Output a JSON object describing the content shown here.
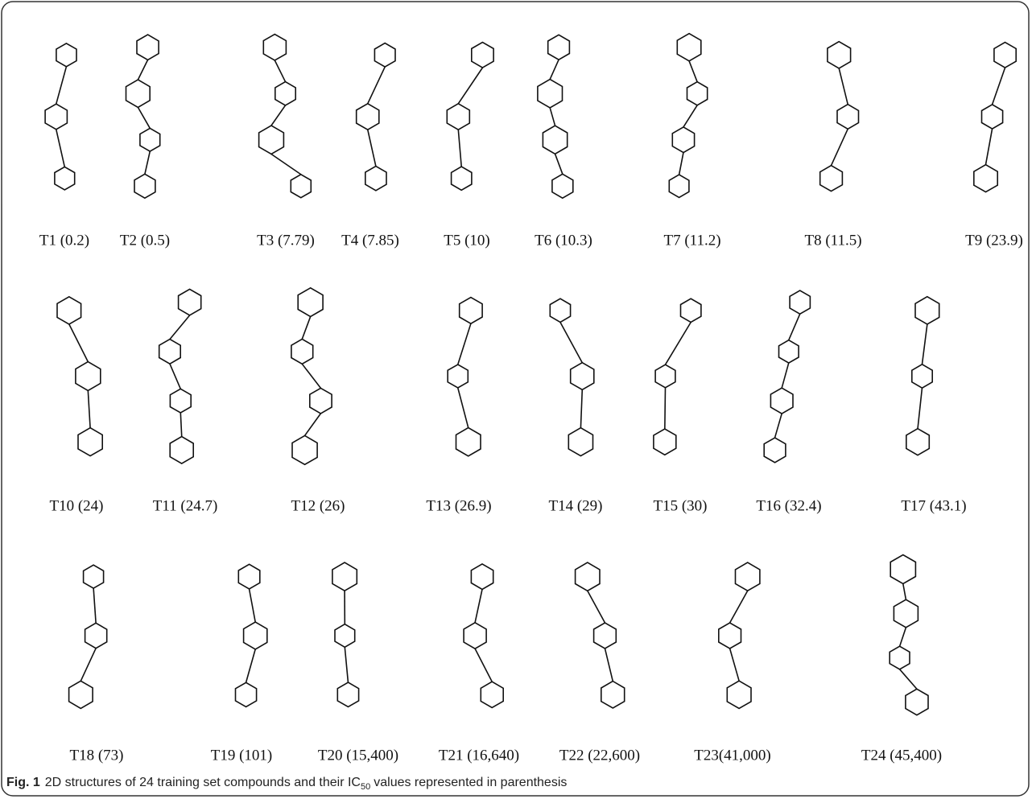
{
  "compounds": [
    [
      "T1 (0.2)",
      "T2 (0.5)",
      "T3 (7.79)",
      "T4 (7.85)",
      "T5 (10)",
      "T6 (10.3)",
      "T7 (11.2)",
      "T8 (11.5)",
      "T9 (23.9)"
    ],
    [
      "T10 (24)",
      "T11 (24.7)",
      "T12 (26)",
      "T13 (26.9)",
      "T14 (29)",
      "T15 (30)",
      "T16 (32.4)",
      "T17 (43.1)"
    ],
    [
      "T18 (73)",
      "T19 (101)",
      "T20 (15,400)",
      "T21 (16,640)",
      "T22 (22,600)",
      "T23(41,000)",
      "T24 (45,400)"
    ]
  ],
  "caption": {
    "label": "Fig. 1",
    "text": "2D structures of 24 training set compounds and their IC",
    "subscript": "50",
    "text_after": "values represented in parenthesis"
  }
}
